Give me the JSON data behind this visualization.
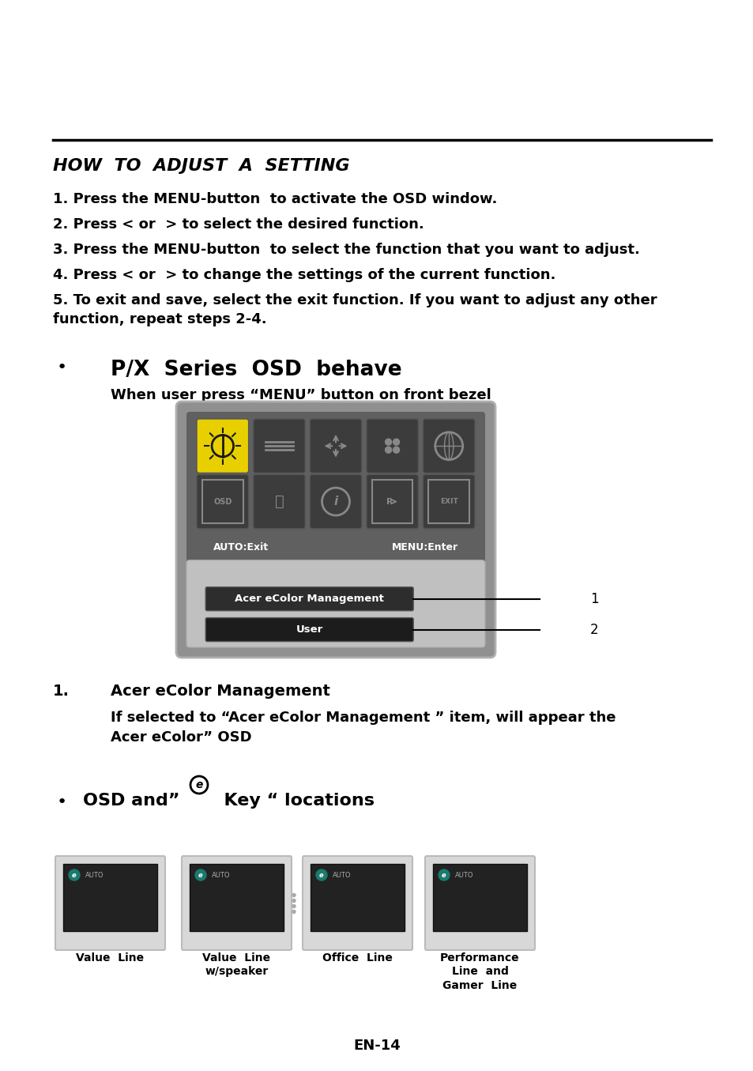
{
  "page_bg": "#ffffff",
  "acer_logo_color": "#1a7a6e",
  "title": "HOW  TO  ADJUST  A  SETTING",
  "steps": [
    "1. Press the MENU-button  to activate the OSD window.",
    "2. Press < or  > to select the desired function.",
    "3. Press the MENU-button  to select the function that you want to adjust.",
    "4. Press < or  > to change the settings of the current function.",
    "5. To exit and save, select the exit function. If you want to adjust any other\nfunction, repeat steps 2-4."
  ],
  "bullet_heading": "P/X  Series  OSD  behave",
  "bullet_sub": "When user press “MENU” button on front bezel",
  "section1_num": "1.",
  "section1_heading": "Acer eColor Management",
  "section1_text": "If selected to “Acer eColor Management ” item, will appear the\nAcer eColor” OSD",
  "osd_label_left": "AUTO:Exit",
  "osd_label_right": "MENU:Enter",
  "menu_item1": "Acer eColor Management",
  "menu_item2": "User",
  "captions": [
    "Value  Line",
    "Value  Line\nw/speaker",
    "Office  Line",
    "Performance\nLine  and\nGamer  Line"
  ],
  "footer": "EN-14",
  "hr_color": "#000000",
  "text_color": "#000000"
}
